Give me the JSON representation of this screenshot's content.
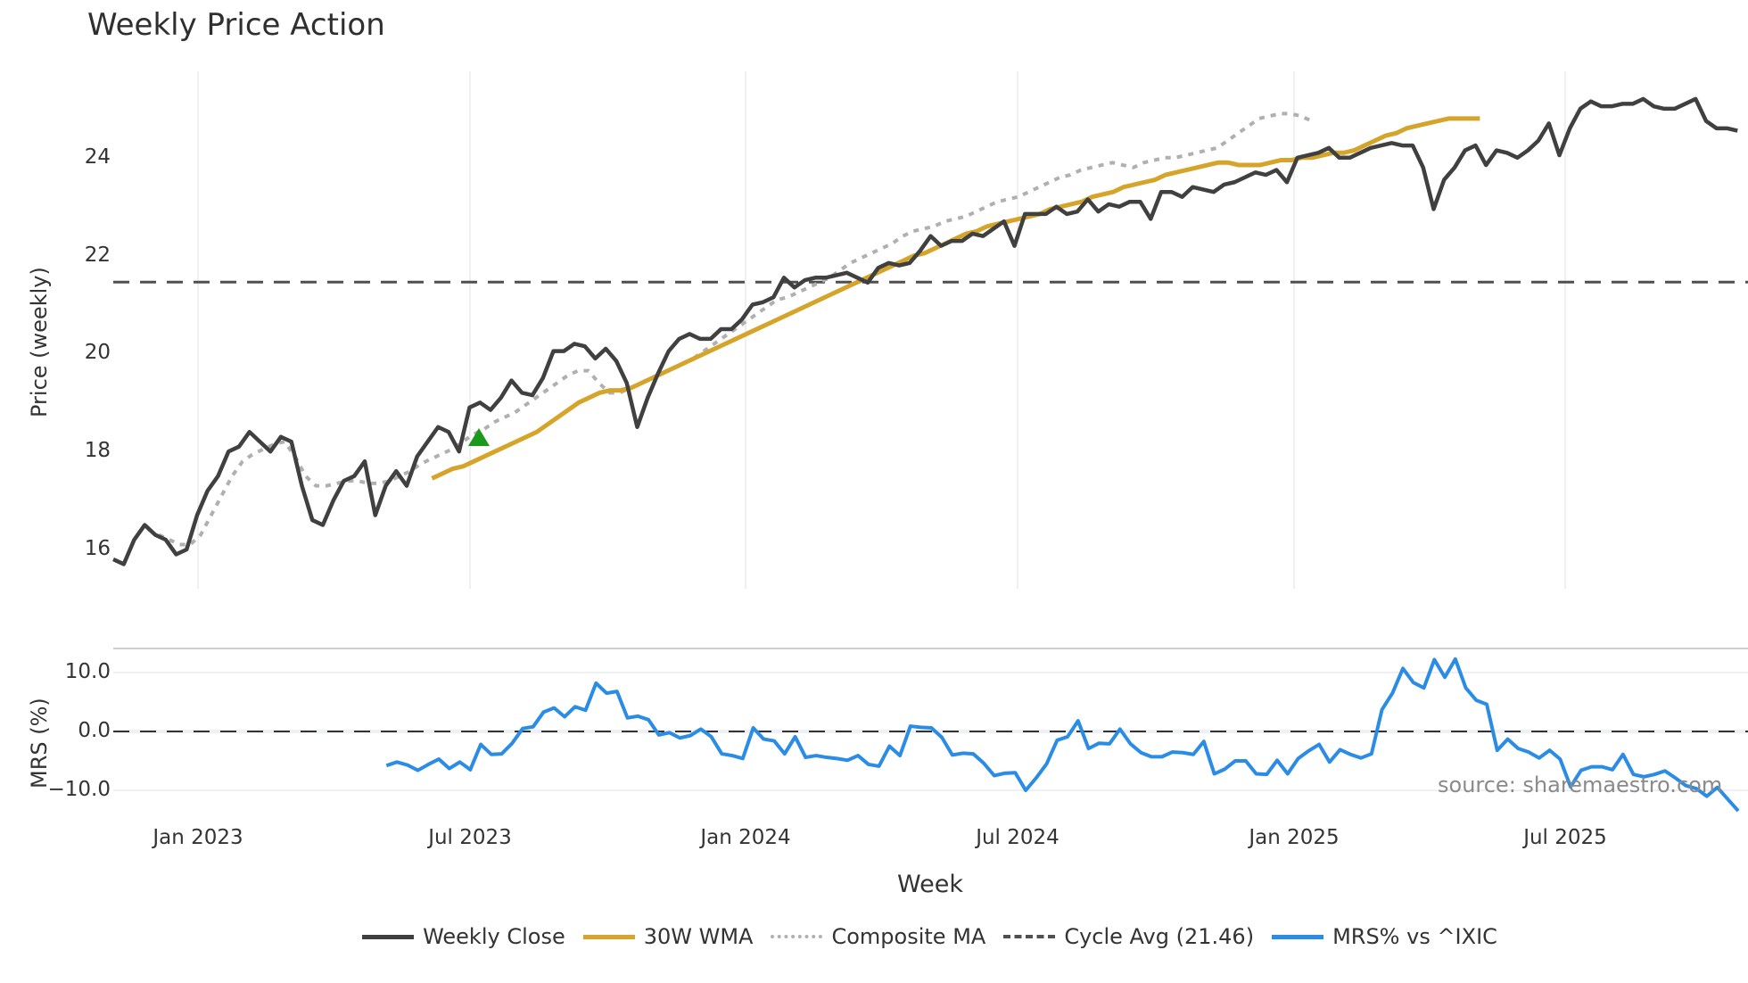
{
  "title": "Weekly Price Action",
  "price_panel": {
    "ylabel": "Price (weekly)",
    "yticks": [
      "16",
      "18",
      "20",
      "22",
      "24"
    ]
  },
  "mrs_panel": {
    "ylabel": "MRS (%)",
    "yticks": [
      "10.0",
      "0.0",
      "−10.0"
    ]
  },
  "xaxis": {
    "label": "Week",
    "ticks": [
      "Jan 2023",
      "Jul 2023",
      "Jan 2024",
      "Jul 2024",
      "Jan 2025",
      "Jul 2025"
    ]
  },
  "source": "source: sharemaestro.com",
  "legend": [
    {
      "label": "Weekly Close",
      "color": "#404040",
      "style": "solid"
    },
    {
      "label": "30W WMA",
      "color": "#d4a52a",
      "style": "solid"
    },
    {
      "label": "Composite MA",
      "color": "#b0b0b0",
      "style": "dotted"
    },
    {
      "label": "Cycle Avg (21.46)",
      "color": "#505050",
      "style": "dashed"
    },
    {
      "label": "MRS% vs ^IXIC",
      "color": "#2b8ce6",
      "style": "solid"
    }
  ],
  "chart_data": [
    {
      "type": "line",
      "title": "Weekly Price Action",
      "xlabel": "Week",
      "ylabel": "Price (weekly)",
      "ylim": [
        15.2,
        25.9
      ],
      "grid": "vertical",
      "x_ticks": [
        "Jan 2023",
        "Jul 2023",
        "Jan 2024",
        "Jul 2024",
        "Jan 2025",
        "Jul 2025"
      ],
      "series": [
        {
          "name": "Weekly Close",
          "color": "#404040",
          "start": "2022-11",
          "values": [
            15.8,
            15.7,
            16.2,
            16.5,
            16.3,
            16.2,
            15.9,
            16.0,
            16.7,
            17.2,
            17.5,
            18.0,
            18.1,
            18.4,
            18.2,
            18.0,
            18.3,
            18.2,
            17.3,
            16.6,
            16.5,
            17.0,
            17.4,
            17.5,
            17.8,
            16.7,
            17.3,
            17.6,
            17.3,
            17.9,
            18.2,
            18.5,
            18.4,
            18.0,
            18.9,
            19.0,
            18.85,
            19.1,
            19.45,
            19.2,
            19.15,
            19.5,
            20.05,
            20.05,
            20.2,
            20.15,
            19.9,
            20.1,
            19.85,
            19.4,
            18.5,
            19.1,
            19.6,
            20.05,
            20.3,
            20.4,
            20.3,
            20.3,
            20.5,
            20.5,
            20.7,
            21.0,
            21.05,
            21.15,
            21.55,
            21.35,
            21.5,
            21.55,
            21.55,
            21.6,
            21.65,
            21.55,
            21.45,
            21.75,
            21.85,
            21.8,
            21.85,
            22.1,
            22.4,
            22.2,
            22.3,
            22.3,
            22.45,
            22.4,
            22.55,
            22.7,
            22.2,
            22.85,
            22.85,
            22.85,
            23.0,
            22.85,
            22.9,
            23.15,
            22.9,
            23.05,
            23.0,
            23.1,
            23.1,
            22.75,
            23.3,
            23.3,
            23.2,
            23.4,
            23.35,
            23.3,
            23.45,
            23.5,
            23.6,
            23.7,
            23.65,
            23.75,
            23.5,
            24.0,
            24.05,
            24.1,
            24.2,
            24.0,
            24.0,
            24.1,
            24.2,
            24.25,
            24.3,
            24.25,
            24.25,
            23.8,
            22.95,
            23.55,
            23.8,
            24.15,
            24.25,
            23.85,
            24.15,
            24.1,
            24.0,
            24.15,
            24.35,
            24.7,
            24.05,
            24.6,
            25.0,
            25.15,
            25.05,
            25.05,
            25.1,
            25.1,
            25.2,
            25.05,
            25.0,
            25.0,
            25.1,
            25.2,
            24.75,
            24.6,
            24.6,
            24.55
          ]
        },
        {
          "name": "30W WMA",
          "color": "#d4a52a",
          "start": "2023-06",
          "values": [
            17.45,
            17.55,
            17.65,
            17.7,
            17.8,
            17.9,
            18.0,
            18.1,
            18.2,
            18.3,
            18.4,
            18.55,
            18.7,
            18.85,
            19.0,
            19.1,
            19.2,
            19.25,
            19.25,
            19.3,
            19.4,
            19.5,
            19.6,
            19.7,
            19.8,
            19.9,
            20.0,
            20.1,
            20.2,
            20.3,
            20.4,
            20.5,
            20.6,
            20.7,
            20.8,
            20.9,
            21.0,
            21.1,
            21.2,
            21.3,
            21.4,
            21.5,
            21.6,
            21.7,
            21.8,
            21.9,
            22.0,
            22.05,
            22.15,
            22.25,
            22.35,
            22.45,
            22.5,
            22.6,
            22.65,
            22.7,
            22.75,
            22.8,
            22.85,
            22.95,
            23.0,
            23.05,
            23.1,
            23.2,
            23.25,
            23.3,
            23.4,
            23.45,
            23.5,
            23.55,
            23.65,
            23.7,
            23.75,
            23.8,
            23.85,
            23.9,
            23.9,
            23.85,
            23.85,
            23.85,
            23.9,
            23.95,
            23.95,
            24.0,
            24.0,
            24.05,
            24.1,
            24.1,
            24.15,
            24.25,
            24.35,
            24.45,
            24.5,
            24.6,
            24.65,
            24.7,
            24.75,
            24.8,
            24.8,
            24.8,
            24.8
          ]
        },
        {
          "name": "Composite MA",
          "color": "#b0b0b0",
          "start": "2022-12",
          "values": [
            16.3,
            16.2,
            16.1,
            16.1,
            16.3,
            16.7,
            17.1,
            17.5,
            17.8,
            17.95,
            18.05,
            18.15,
            18.2,
            17.9,
            17.5,
            17.3,
            17.3,
            17.35,
            17.4,
            17.4,
            17.35,
            17.35,
            17.4,
            17.5,
            17.6,
            17.75,
            17.85,
            17.95,
            18.05,
            18.2,
            18.35,
            18.45,
            18.6,
            18.7,
            18.8,
            18.95,
            19.1,
            19.25,
            19.4,
            19.55,
            19.65,
            19.65,
            19.4,
            19.2,
            19.2,
            19.3,
            19.4,
            19.5,
            19.6,
            19.7,
            19.8,
            19.9,
            20.05,
            20.2,
            20.35,
            20.5,
            20.65,
            20.8,
            20.95,
            21.1,
            21.15,
            21.25,
            21.35,
            21.45,
            21.55,
            21.7,
            21.85,
            21.95,
            22.05,
            22.15,
            22.25,
            22.4,
            22.5,
            22.55,
            22.6,
            22.7,
            22.75,
            22.8,
            22.9,
            23.0,
            23.1,
            23.15,
            23.2,
            23.3,
            23.4,
            23.5,
            23.6,
            23.65,
            23.75,
            23.8,
            23.85,
            23.9,
            23.85,
            23.8,
            23.9,
            23.95,
            24.0,
            24.0,
            24.05,
            24.1,
            24.15,
            24.2,
            24.35,
            24.5,
            24.65,
            24.8,
            24.85,
            24.9,
            24.9,
            24.85,
            24.75
          ]
        },
        {
          "name": "Cycle Avg (21.46)",
          "color": "#505050",
          "constant": 21.46
        }
      ]
    },
    {
      "type": "line",
      "title": "",
      "xlabel": "Week",
      "ylabel": "MRS (%)",
      "ylim": [
        -14,
        14
      ],
      "reference_line": 0.0,
      "series": [
        {
          "name": "MRS% vs ^IXIC",
          "color": "#2b8ce6",
          "start": "2023-05",
          "values": [
            -5.8,
            -5.2,
            -5.7,
            -6.6,
            -5.6,
            -4.7,
            -6.3,
            -5.2,
            -6.5,
            -2.2,
            -3.9,
            -3.8,
            -2.0,
            0.5,
            0.8,
            3.3,
            4.0,
            2.5,
            4.2,
            3.6,
            8.2,
            6.5,
            6.8,
            2.3,
            2.6,
            2.0,
            -0.6,
            -0.2,
            -1.1,
            -0.7,
            0.4,
            -0.9,
            -3.8,
            -4.1,
            -4.6,
            0.6,
            -1.3,
            -1.6,
            -3.8,
            -0.9,
            -4.4,
            -4.1,
            -4.4,
            -4.6,
            -4.9,
            -4.1,
            -5.6,
            -5.9,
            -2.5,
            -4.1,
            0.9,
            0.7,
            0.6,
            -1.0,
            -4.0,
            -3.7,
            -3.8,
            -5.4,
            -7.5,
            -7.1,
            -7.0,
            -10.0,
            -7.9,
            -5.5,
            -1.5,
            -0.9,
            1.8,
            -2.9,
            -2.0,
            -2.1,
            0.4,
            -2.1,
            -3.6,
            -4.3,
            -4.3,
            -3.5,
            -3.6,
            -3.9,
            -1.7,
            -7.2,
            -6.4,
            -5.0,
            -5.0,
            -7.2,
            -7.3,
            -4.9,
            -7.2,
            -4.6,
            -3.3,
            -2.2,
            -5.2,
            -3.1,
            -3.9,
            -4.5,
            -3.8,
            3.7,
            6.5,
            10.7,
            8.3,
            7.4,
            12.2,
            9.2,
            12.3,
            7.4,
            5.3,
            4.6,
            -3.2,
            -1.3,
            -2.9,
            -3.5,
            -4.5,
            -3.2,
            -4.7,
            -9.4,
            -6.6,
            -6.0,
            -6.0,
            -6.5,
            -3.9,
            -7.3,
            -7.7,
            -7.3,
            -6.7,
            -7.9,
            -9.2,
            -9.7,
            -11.0,
            -9.5,
            -11.5,
            -13.5
          ]
        }
      ]
    }
  ]
}
